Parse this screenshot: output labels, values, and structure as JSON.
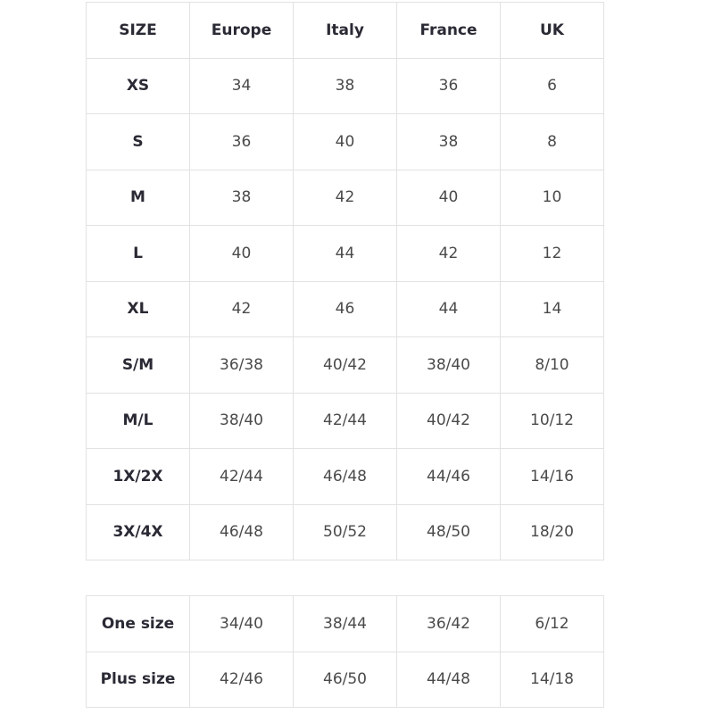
{
  "size_table": {
    "headers": [
      "SIZE",
      "Europe",
      "Italy",
      "France",
      "UK"
    ],
    "rows": [
      [
        "XS",
        "34",
        "38",
        "36",
        "6"
      ],
      [
        "S",
        "36",
        "40",
        "38",
        "8"
      ],
      [
        "M",
        "38",
        "42",
        "40",
        "10"
      ],
      [
        "L",
        "40",
        "44",
        "42",
        "12"
      ],
      [
        "XL",
        "42",
        "46",
        "44",
        "14"
      ],
      [
        "S/M",
        "36/38",
        "40/42",
        "38/40",
        "8/10"
      ],
      [
        "M/L",
        "38/40",
        "42/44",
        "40/42",
        "10/12"
      ],
      [
        "1X/2X",
        "42/44",
        "46/48",
        "44/46",
        "14/16"
      ],
      [
        "3X/4X",
        "46/48",
        "50/52",
        "48/50",
        "18/20"
      ]
    ]
  },
  "special_table": {
    "rows": [
      [
        "One size",
        "34/40",
        "38/44",
        "36/42",
        "6/12"
      ],
      [
        "Plus size",
        "42/46",
        "46/50",
        "44/48",
        "14/18"
      ]
    ]
  }
}
